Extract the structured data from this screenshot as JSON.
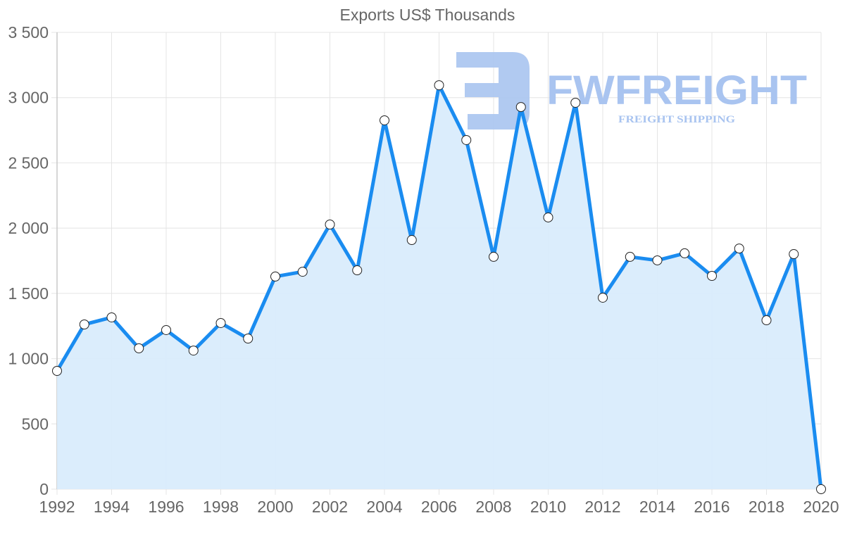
{
  "chart_data": {
    "type": "line",
    "title": "Exports US$ Thousands",
    "xlabel": "",
    "ylabel": "",
    "ylim": [
      0,
      3500
    ],
    "yticks": [
      0,
      500,
      1000,
      1500,
      2000,
      2500,
      3000,
      3500
    ],
    "ytick_labels": [
      "0",
      "500",
      "1 000",
      "1 500",
      "2 000",
      "2 500",
      "3 000",
      "3 500"
    ],
    "xtick_labels": [
      "1992",
      "1994",
      "1996",
      "1998",
      "2000",
      "2002",
      "2004",
      "2006",
      "2008",
      "2010",
      "2012",
      "2014",
      "2016",
      "2018",
      "2020"
    ],
    "grid": true,
    "filled_area": true,
    "categories": [
      1992,
      1993,
      1994,
      1995,
      1996,
      1997,
      1998,
      1999,
      2000,
      2001,
      2002,
      2003,
      2004,
      2005,
      2006,
      2007,
      2008,
      2009,
      2010,
      2011,
      2012,
      2013,
      2014,
      2015,
      2016,
      2017,
      2018,
      2019,
      2020
    ],
    "series": [
      {
        "name": "Exports US$ Thousands",
        "values": [
          906,
          1262,
          1316,
          1079,
          1219,
          1062,
          1273,
          1154,
          1629,
          1666,
          2028,
          1677,
          2826,
          1909,
          3095,
          2675,
          1780,
          2928,
          2082,
          2961,
          1467,
          1780,
          1753,
          1807,
          1634,
          1844,
          1294,
          1801,
          0
        ]
      }
    ]
  },
  "colors": {
    "line": "#1a8cf0",
    "fill": "#d9ecfc",
    "grid": "#e4e4e4",
    "axis_text": "#666666",
    "watermark": "#a9c4f0"
  },
  "watermark": {
    "brand": "FWFREIGHT",
    "tagline": "FREIGHT SHIPPING"
  }
}
